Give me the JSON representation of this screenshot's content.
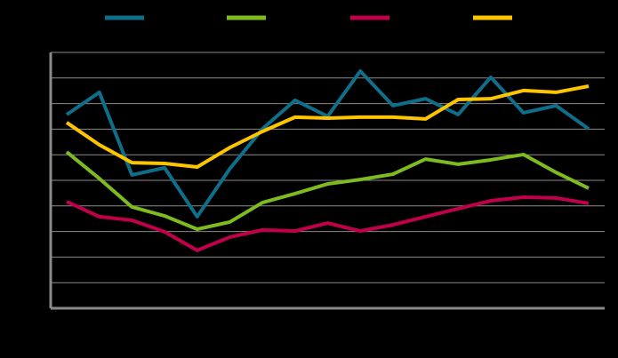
{
  "chart_data": {
    "type": "line",
    "categories": [
      null,
      null,
      null,
      null,
      null,
      null,
      null,
      null,
      null,
      null,
      null,
      null,
      null,
      null,
      null,
      null,
      null
    ],
    "series": [
      {
        "color": "#0f6e8a",
        "values": [
          7.57,
          8.44,
          5.21,
          5.49,
          3.58,
          5.45,
          7.01,
          8.13,
          7.5,
          9.27,
          7.92,
          8.19,
          7.57,
          9.03,
          7.64,
          7.92,
          7.01
        ]
      },
      {
        "color": "#7dbb1f",
        "values": [
          6.11,
          5.07,
          3.96,
          3.61,
          3.09,
          3.37,
          4.13,
          4.48,
          4.86,
          5.03,
          5.24,
          5.83,
          5.63,
          5.8,
          6.01,
          5.31,
          4.69
        ]
      },
      {
        "color": "#c0004a",
        "values": [
          4.17,
          3.58,
          3.44,
          2.99,
          2.26,
          2.78,
          3.06,
          3.02,
          3.33,
          3.02,
          3.26,
          3.58,
          3.89,
          4.2,
          4.34,
          4.31,
          4.1
        ]
      },
      {
        "color": "#fcc500",
        "values": [
          7.26,
          6.39,
          5.69,
          5.66,
          5.52,
          6.28,
          6.91,
          7.47,
          7.43,
          7.47,
          7.47,
          7.4,
          8.16,
          8.19,
          8.51,
          8.44,
          8.68
        ]
      }
    ],
    "ylim": [
      0,
      10
    ],
    "yticks": [
      0,
      1,
      2,
      3,
      4,
      5,
      6,
      7,
      8,
      9,
      10
    ],
    "grid": true
  }
}
